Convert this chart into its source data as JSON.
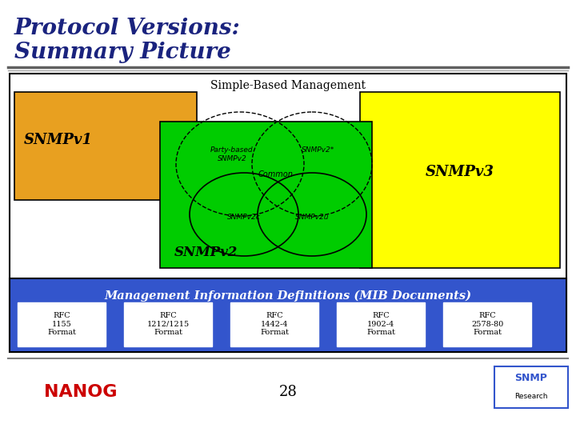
{
  "title_line1": "Protocol Versions:",
  "title_line2": "Summary Picture",
  "title_color": "#1a237e",
  "background_color": "#FFFFFF",
  "separator_color": "#808080",
  "outer_box_color": "#000000",
  "outer_box_fill": "#FFFFFF",
  "sbm_label": "Simple-Based Management",
  "snmpv1_color": "#E8A020",
  "snmpv1_label": "SNMPv1",
  "snmpv3_color": "#FFFF00",
  "snmpv3_label": "SNMPv3",
  "snmpv2_color": "#00CC00",
  "snmpv2_label": "SNMPv2",
  "mib_box_color": "#3355CC",
  "mib_label": "Management Information Definitions (MIB Documents)",
  "rfc_boxes": [
    "RFC\n1155\nFormat",
    "RFC\n1212/1215\nFormat",
    "RFC\n1442-4\nFormat",
    "RFC\n1902-4\nFormat",
    "RFC\n2578-80\nFormat"
  ],
  "footer_page": "28",
  "nanog_color": "#CC0000",
  "snmp_box_color": "#3355CC"
}
